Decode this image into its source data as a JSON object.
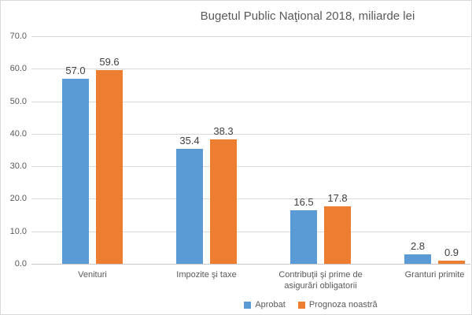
{
  "chart_data": {
    "type": "bar",
    "title": "Bugetul Public Naţional 2018, miliarde lei",
    "categories": [
      "Venituri",
      "Impozite şi taxe",
      "Contribuţii şi prime de asigurări obligatorii",
      "Granturi primite"
    ],
    "series": [
      {
        "name": "Aprobat",
        "color": "#5B9BD5",
        "values": [
          57.0,
          35.4,
          16.5,
          2.8
        ]
      },
      {
        "name": "Prognoza noastră",
        "color": "#ED7D31",
        "values": [
          59.6,
          38.3,
          17.8,
          0.9
        ]
      }
    ],
    "xlabel": "",
    "ylabel": "",
    "ylim": [
      0,
      70
    ],
    "ytick_step": 10,
    "ytick_labels": [
      "0.0",
      "10.0",
      "20.0",
      "30.0",
      "40.0",
      "50.0",
      "60.0",
      "70.0"
    ],
    "grid": true,
    "legend_position": "bottom",
    "value_label_decimals": 1,
    "colors": {
      "title_text": "#595959",
      "axis_text": "#595959",
      "value_text": "#404040",
      "gridline": "#D9D9D9"
    }
  }
}
